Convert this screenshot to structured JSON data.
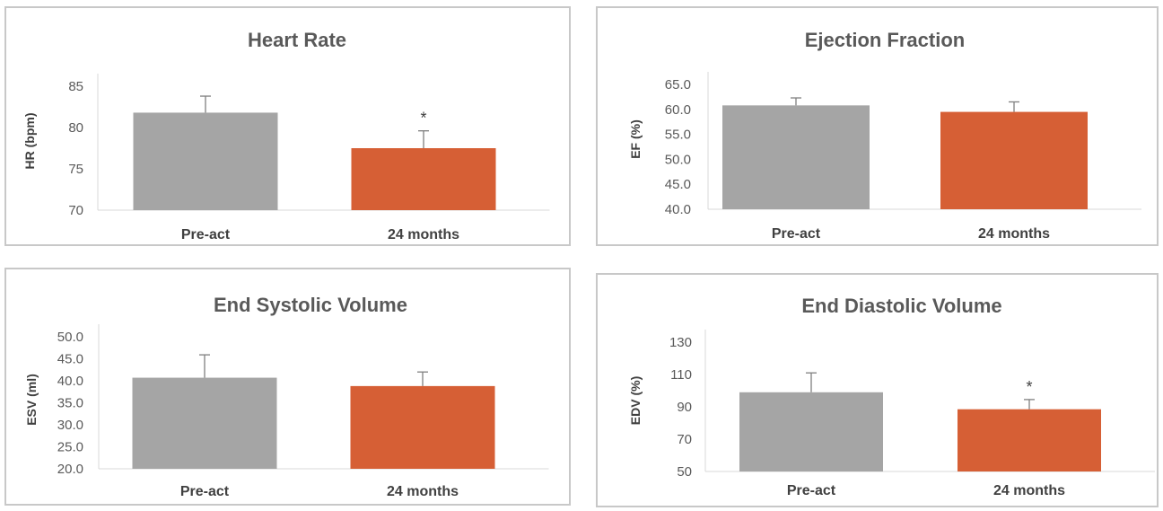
{
  "chart_data": [
    {
      "type": "bar",
      "title": "Heart Rate",
      "ylabel": "HR (bpm)",
      "xlabel": "",
      "categories": [
        "Pre-act",
        "24 months"
      ],
      "values": [
        81.8,
        77.5
      ],
      "errors": [
        2.0,
        2.1
      ],
      "annotations": [
        "",
        "*"
      ],
      "colors": [
        "#a5a5a5",
        "#d65f35"
      ],
      "ylim": [
        70,
        85
      ],
      "yticks": [
        "70",
        "75",
        "80",
        "85"
      ]
    },
    {
      "type": "bar",
      "title": "Ejection Fraction",
      "ylabel": "EF (%)",
      "xlabel": "",
      "categories": [
        "Pre-act",
        "24 months"
      ],
      "values": [
        60.8,
        59.5
      ],
      "errors": [
        1.5,
        2.0
      ],
      "annotations": [
        "",
        ""
      ],
      "colors": [
        "#a5a5a5",
        "#d65f35"
      ],
      "ylim": [
        40,
        65
      ],
      "yticks": [
        "40.0",
        "45.0",
        "50.0",
        "55.0",
        "60.0",
        "65.0"
      ]
    },
    {
      "type": "bar",
      "title": "End Systolic Volume",
      "ylabel": "ESV (ml)",
      "xlabel": "",
      "categories": [
        "Pre-act",
        "24 months"
      ],
      "values": [
        40.7,
        38.8
      ],
      "errors": [
        5.2,
        3.2
      ],
      "annotations": [
        "",
        ""
      ],
      "colors": [
        "#a5a5a5",
        "#d65f35"
      ],
      "ylim": [
        20,
        50
      ],
      "yticks": [
        "20.0",
        "25.0",
        "30.0",
        "35.0",
        "40.0",
        "45.0",
        "50.0"
      ]
    },
    {
      "type": "bar",
      "title": "End Diastolic Volume",
      "ylabel": "EDV (%)",
      "xlabel": "",
      "categories": [
        "Pre-act",
        "24 months"
      ],
      "values": [
        99,
        88.5
      ],
      "errors": [
        12,
        6
      ],
      "annotations": [
        "",
        "*"
      ],
      "colors": [
        "#a5a5a5",
        "#d65f35"
      ],
      "ylim": [
        50,
        130
      ],
      "yticks": [
        "50",
        "70",
        "90",
        "110",
        "130"
      ]
    }
  ]
}
